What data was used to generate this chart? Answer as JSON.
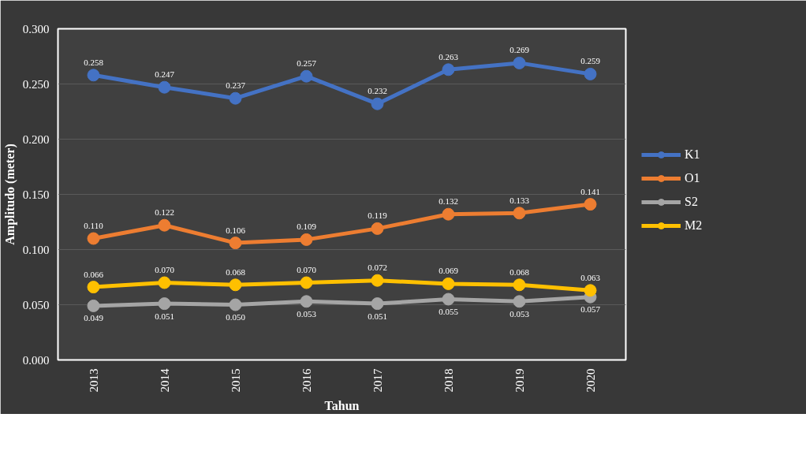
{
  "chart_data": {
    "type": "line",
    "xlabel": "Tahun",
    "ylabel": "Amplitudo (meter)",
    "categories": [
      "2013",
      "2014",
      "2015",
      "2016",
      "2017",
      "2018",
      "2019",
      "2020"
    ],
    "series": [
      {
        "name": "K1",
        "color": "#4472c4",
        "values": [
          0.258,
          0.247,
          0.237,
          0.257,
          0.232,
          0.263,
          0.269,
          0.259
        ],
        "value_labels": [
          "0.258",
          "0.247",
          "0.237",
          "0.257",
          "0.232",
          "0.263",
          "0.269",
          "0.259"
        ]
      },
      {
        "name": "O1",
        "color": "#ed7d31",
        "values": [
          0.11,
          0.122,
          0.106,
          0.109,
          0.119,
          0.132,
          0.133,
          0.141
        ],
        "value_labels": [
          "0.110",
          "0.122",
          "0.106",
          "0.109",
          "0.119",
          "0.132",
          "0.133",
          "0.141"
        ]
      },
      {
        "name": "S2",
        "color": "#a5a5a5",
        "values": [
          0.049,
          0.051,
          0.05,
          0.053,
          0.051,
          0.055,
          0.053,
          0.057
        ],
        "value_labels": [
          "0.049",
          "0.051",
          "0.050",
          "0.053",
          "0.051",
          "0.055",
          "0.053",
          "0.057"
        ]
      },
      {
        "name": "M2",
        "color": "#ffc000",
        "values": [
          0.066,
          0.07,
          0.068,
          0.07,
          0.072,
          0.069,
          0.068,
          0.063
        ],
        "value_labels": [
          "0.066",
          "0.070",
          "0.068",
          "0.070",
          "0.072",
          "0.069",
          "0.068",
          "0.063"
        ]
      }
    ],
    "ylim": [
      0,
      0.3
    ],
    "yticks": [
      {
        "value": 0,
        "label": "0.000"
      },
      {
        "value": 0.05,
        "label": "0.050"
      },
      {
        "value": 0.1,
        "label": "0.100"
      },
      {
        "value": 0.15,
        "label": "0.150"
      },
      {
        "value": 0.2,
        "label": "0.200"
      },
      {
        "value": 0.25,
        "label": "0.250"
      },
      {
        "value": 0.3,
        "label": "0.300"
      }
    ],
    "grid": "y",
    "legend": "right",
    "marker": "circle",
    "line_style": "solid"
  }
}
